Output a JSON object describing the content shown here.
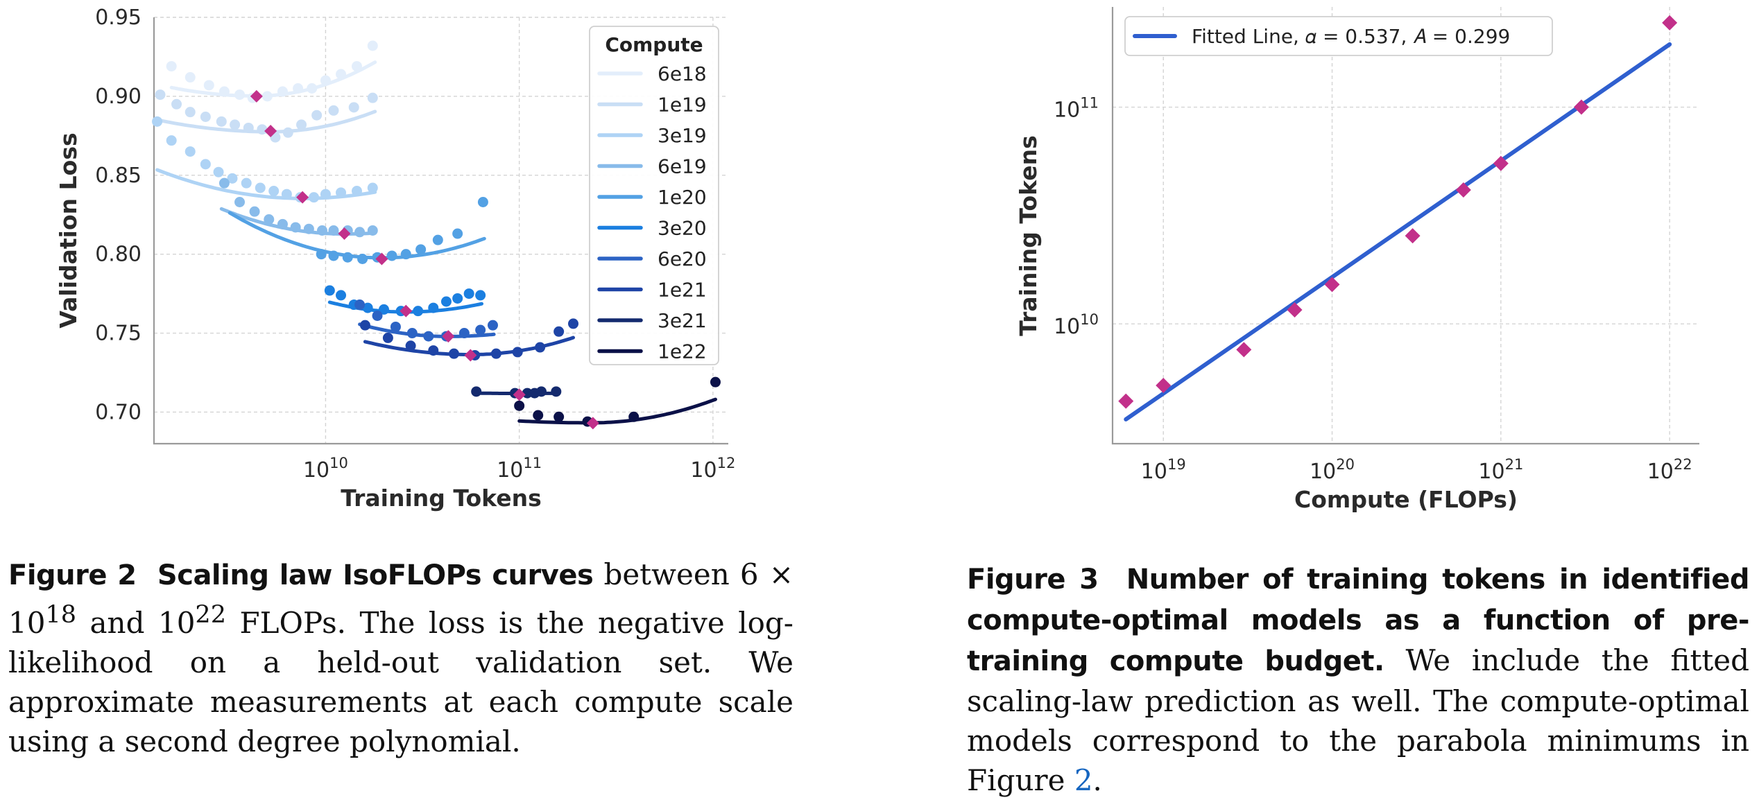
{
  "chart_data": [
    {
      "type": "scatter",
      "xlabel": "Training Tokens",
      "ylabel": "Validation Loss",
      "xscale": "log",
      "xlim": [
        1300000000.0,
        1200000000000.0
      ],
      "ylim": [
        0.68,
        0.95
      ],
      "yticks": [
        "0.70",
        "0.75",
        "0.80",
        "0.85",
        "0.90",
        "0.95"
      ],
      "xticks": [
        {
          "base": "10",
          "exp": "10",
          "value": 10000000000.0
        },
        {
          "base": "10",
          "exp": "11",
          "value": 100000000000.0
        },
        {
          "base": "10",
          "exp": "12",
          "value": 1000000000000.0
        }
      ],
      "grid": true,
      "legend": {
        "title": "Compute",
        "position": "top-right"
      },
      "series": [
        {
          "name": "6e18",
          "color": "#e3eefb",
          "x": [
            1600000000.0,
            2000000000.0,
            2500000000.0,
            3000000000.0,
            3600000000.0,
            4200000000.0,
            5000000000.0,
            6000000000.0,
            7200000000.0,
            8500000000.0,
            10000000000.0,
            12000000000.0,
            14500000000.0,
            17500000000.0
          ],
          "y": [
            0.919,
            0.912,
            0.907,
            0.903,
            0.901,
            0.899,
            0.9,
            0.903,
            0.905,
            0.905,
            0.91,
            0.914,
            0.919,
            0.932
          ],
          "fit": [
            0.9002,
            0.0276,
            0.0572,
            4400000000.0
          ],
          "fit_range": [
            1600000000.0,
            18000000000.0
          ],
          "optimum": {
            "x": 4400000000.0,
            "y": 0.9
          }
        },
        {
          "name": "1e19",
          "color": "#c9def5",
          "x": [
            1400000000.0,
            1700000000.0,
            2000000000.0,
            2400000000.0,
            2900000000.0,
            3400000000.0,
            4000000000.0,
            4700000000.0,
            5500000000.0,
            6400000000.0,
            7500000000.0,
            9000000000.0,
            11000000000.0,
            14000000000.0,
            17500000000.0
          ],
          "y": [
            0.901,
            0.895,
            0.89,
            0.887,
            0.884,
            0.882,
            0.88,
            0.879,
            0.874,
            0.877,
            0.882,
            0.888,
            0.891,
            0.893,
            0.899
          ],
          "fit": [
            0.8775,
            0.0221,
            0.0442,
            5200000000.0
          ],
          "fit_range": [
            1400000000.0,
            18000000000.0
          ],
          "optimum": {
            "x": 5200000000.0,
            "y": 0.878
          }
        },
        {
          "name": "3e19",
          "color": "#aed3f5",
          "x": [
            1350000000.0,
            1600000000.0,
            2000000000.0,
            2400000000.0,
            2800000000.0,
            3300000000.0,
            3900000000.0,
            4600000000.0,
            5400000000.0,
            6300000000.0,
            7400000000.0,
            8700000000.0,
            10000000000.0,
            12000000000.0,
            14500000000.0,
            17500000000.0
          ],
          "y": [
            0.884,
            0.872,
            0.865,
            0.857,
            0.852,
            0.848,
            0.845,
            0.842,
            0.84,
            0.838,
            0.836,
            0.836,
            0.838,
            0.839,
            0.84,
            0.842
          ],
          "fit": [
            0.8353,
            0.0322,
            0.0285,
            7600000000.0
          ],
          "fit_range": [
            1350000000.0,
            18000000000.0
          ],
          "optimum": {
            "x": 7600000000.0,
            "y": 0.836
          }
        },
        {
          "name": "6e19",
          "color": "#88bbea",
          "x": [
            3000000000.0,
            3600000000.0,
            4300000000.0,
            5100000000.0,
            6000000000.0,
            7000000000.0,
            8200000000.0,
            9600000000.0,
            11000000000.0,
            13000000000.0,
            15000000000.0,
            17500000000.0
          ],
          "y": [
            0.845,
            0.833,
            0.827,
            0.822,
            0.819,
            0.817,
            0.816,
            0.815,
            0.815,
            0.815,
            0.814,
            0.815
          ],
          "fit": [
            0.8128,
            0.0395,
            0.0245,
            12500000000.0
          ],
          "fit_range": [
            2900000000.0,
            18000000000.0
          ],
          "optimum": {
            "x": 12500000000.0,
            "y": 0.813
          }
        },
        {
          "name": "1e20",
          "color": "#53a1e4",
          "x": [
            9500000000.0,
            11000000000.0,
            13000000000.0,
            15500000000.0,
            18500000000.0,
            22000000000.0,
            26000000000.0,
            31000000000.0,
            38000000000.0,
            48000000000.0,
            65000000000.0
          ],
          "y": [
            0.8,
            0.799,
            0.798,
            0.797,
            0.798,
            0.799,
            0.8,
            0.803,
            0.809,
            0.813,
            0.833
          ],
          "fit": [
            0.7977,
            0.0462,
            0.0434,
            19500000000.0
          ],
          "fit_range": [
            3200000000.0,
            66000000000.0
          ],
          "optimum": {
            "x": 19500000000.0,
            "y": 0.797
          }
        },
        {
          "name": "3e20",
          "color": "#1b7fe0",
          "x": [
            10500000000.0,
            12000000000.0,
            14000000000.0,
            16500000000.0,
            20000000000.0,
            24500000000.0,
            30000000000.0,
            36000000000.0,
            42000000000.0,
            48000000000.0,
            55000000000.0,
            63000000000.0
          ],
          "y": [
            0.777,
            0.774,
            0.768,
            0.766,
            0.765,
            0.764,
            0.764,
            0.766,
            0.77,
            0.772,
            0.775,
            0.774
          ],
          "fit": [
            0.7634,
            0.0398,
            0.034,
            26000000000.0
          ],
          "fit_range": [
            10500000000.0,
            64000000000.0
          ],
          "optimum": {
            "x": 26000000000.0,
            "y": 0.764
          }
        },
        {
          "name": "6e20",
          "color": "#2c63c4",
          "x": [
            15000000000.0,
            18500000000.0,
            23000000000.0,
            28000000000.0,
            34000000000.0,
            42000000000.0,
            52000000000.0,
            63000000000.0,
            73000000000.0
          ],
          "y": [
            0.768,
            0.761,
            0.754,
            0.75,
            0.748,
            0.748,
            0.75,
            0.752,
            0.755
          ],
          "fit": [
            0.7479,
            0.0369,
            0.0242,
            43000000000.0
          ],
          "fit_range": [
            15000000000.0,
            74000000000.0
          ],
          "optimum": {
            "x": 43000000000.0,
            "y": 0.748
          }
        },
        {
          "name": "1e21",
          "color": "#1e44a6",
          "x": [
            16000000000.0,
            21000000000.0,
            27500000000.0,
            36000000000.0,
            46000000000.0,
            59000000000.0,
            76000000000.0,
            98000000000.0,
            128000000000.0,
            160000000000.0,
            190000000000.0
          ],
          "y": [
            0.755,
            0.747,
            0.742,
            0.739,
            0.737,
            0.736,
            0.737,
            0.738,
            0.741,
            0.751,
            0.756
          ],
          "fit": [
            0.7364,
            0.0277,
            0.0382,
            56000000000.0
          ],
          "fit_range": [
            16000000000.0,
            190000000000.0
          ],
          "optimum": {
            "x": 56000000000.0,
            "y": 0.736
          }
        },
        {
          "name": "3e21",
          "color": "#142a6e",
          "x": [
            60000000000.0,
            95000000000.0,
            110000000000.0,
            120000000000.0,
            130000000000.0,
            155000000000.0
          ],
          "y": [
            0.713,
            0.712,
            0.712,
            0.712,
            0.713,
            0.713
          ],
          "fit": [
            0.7118,
            0.0046,
            0.003,
            100000000000.0
          ],
          "fit_range": [
            60000000000.0,
            155000000000.0
          ],
          "optimum": {
            "x": 100000000000.0,
            "y": 0.711
          }
        },
        {
          "name": "1e22",
          "color": "#0b1148",
          "x": [
            100000000000.0,
            125000000000.0,
            160000000000.0,
            225000000000.0,
            390000000000.0,
            1030000000000.0
          ],
          "y": [
            0.704,
            0.698,
            0.697,
            0.694,
            0.697,
            0.719
          ],
          "fit": [
            0.6932,
            0.0085,
            0.0361,
            235000000000.0
          ],
          "fit_range": [
            100000000000.0,
            1030000000000.0
          ],
          "optimum": {
            "x": 240000000000.0,
            "y": 0.693
          }
        }
      ]
    },
    {
      "type": "scatter",
      "xlabel": "Compute (FLOPs)",
      "ylabel": "Training Tokens",
      "xscale": "log",
      "yscale": "log",
      "xlim": [
        5e+18,
        1.5e+22
      ],
      "ylim": [
        2800000000.0,
        290000000000.0
      ],
      "xticks": [
        {
          "base": "10",
          "exp": "19",
          "value": 1e+19
        },
        {
          "base": "10",
          "exp": "20",
          "value": 1e+20
        },
        {
          "base": "10",
          "exp": "21",
          "value": 1e+21
        },
        {
          "base": "10",
          "exp": "22",
          "value": 1e+22
        }
      ],
      "yticks": [
        {
          "base": "10",
          "exp": "10",
          "value": 10000000000.0
        },
        {
          "base": "10",
          "exp": "11",
          "value": 100000000000.0
        }
      ],
      "grid": true,
      "legend": {
        "position": "top-left"
      },
      "fit_line": {
        "label": "Fitted Line, 𝛼 = 0.537, 𝐴 = 0.299",
        "alpha": 0.537,
        "A": 0.299,
        "x_range": [
          6e+18,
          1e+22
        ],
        "color": "#2f5fcf"
      },
      "points": {
        "color": "#c2308a",
        "x": [
          6e+18,
          1e+19,
          3e+19,
          6e+19,
          1e+20,
          3e+20,
          6e+20,
          1e+21,
          3e+21,
          1e+22
        ],
        "y": [
          4400000000.0,
          5200000000.0,
          7600000000.0,
          11600000000.0,
          15200000000.0,
          25500000000.0,
          41500000000.0,
          55000000000.0,
          100000000000.0,
          245000000000.0
        ]
      }
    }
  ],
  "captions": {
    "fig2": {
      "label": "Figure 2",
      "title": "Scaling law IsoFLOPs curves",
      "text_before": "between 6 × 10",
      "sup1": "18",
      "text_mid": "and 10",
      "sup2": "22",
      "text_after": "FLOPs. The loss is the negative log-likelihood on a held-out validation set. We approximate measurements at each compute scale using a second degree polynomial."
    },
    "fig3": {
      "label": "Figure 3",
      "title": "Number of training tokens in identified compute-optimal models as a function of pre-training compute budget.",
      "text": "We include the fitted scaling-law prediction as well. The compute-optimal models correspond to the parabola minimums in Figure",
      "ref": "2",
      "end": "."
    }
  }
}
